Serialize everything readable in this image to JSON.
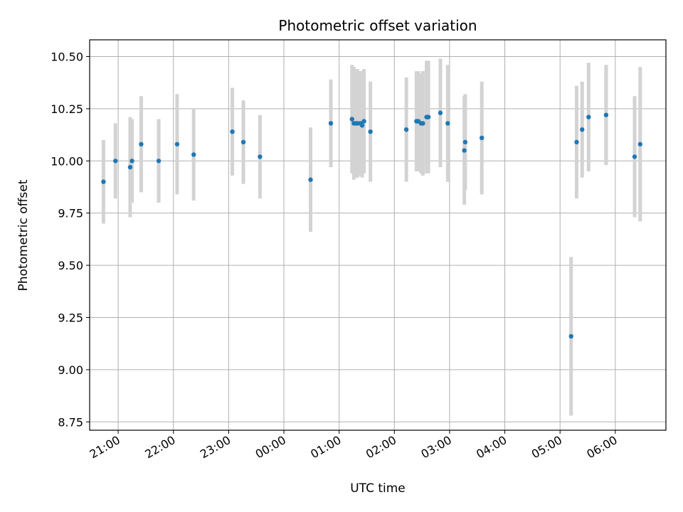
{
  "chart_data": {
    "type": "scatter",
    "title": "Photometric offset variation",
    "xlabel": "UTC time",
    "ylabel": "Photometric offset",
    "x_domain": [
      "20:29",
      "06:55"
    ],
    "x_ticks": [
      "21:00",
      "22:00",
      "23:00",
      "00:00",
      "01:00",
      "02:00",
      "03:00",
      "04:00",
      "05:00",
      "06:00"
    ],
    "ylim": [
      8.71,
      10.58
    ],
    "y_ticks": [
      "8.75",
      "9.00",
      "9.25",
      "9.50",
      "9.75",
      "10.00",
      "10.25",
      "10.50"
    ],
    "grid": true,
    "colors": {
      "point": "#1f77b4",
      "errorbar": "#d3d3d3",
      "grid": "#b0b0b0"
    },
    "points": [
      {
        "x": "20:44",
        "y": 9.9,
        "err": 0.2
      },
      {
        "x": "20:57",
        "y": 10.0,
        "err": 0.18
      },
      {
        "x": "21:13",
        "y": 9.97,
        "err": 0.24
      },
      {
        "x": "21:15",
        "y": 10.0,
        "err": 0.2
      },
      {
        "x": "21:25",
        "y": 10.08,
        "err": 0.23
      },
      {
        "x": "21:44",
        "y": 10.0,
        "err": 0.2
      },
      {
        "x": "22:04",
        "y": 10.08,
        "err": 0.24
      },
      {
        "x": "22:22",
        "y": 10.03,
        "err": 0.22
      },
      {
        "x": "23:04",
        "y": 10.14,
        "err": 0.21
      },
      {
        "x": "23:16",
        "y": 10.09,
        "err": 0.2
      },
      {
        "x": "23:34",
        "y": 10.02,
        "err": 0.2
      },
      {
        "x": "00:29",
        "y": 9.91,
        "err": 0.25
      },
      {
        "x": "00:51",
        "y": 10.18,
        "err": 0.21
      },
      {
        "x": "01:14",
        "y": 10.2,
        "err": 0.26
      },
      {
        "x": "01:16",
        "y": 10.18,
        "err": 0.27
      },
      {
        "x": "01:18",
        "y": 10.18,
        "err": 0.26
      },
      {
        "x": "01:20",
        "y": 10.18,
        "err": 0.26
      },
      {
        "x": "01:23",
        "y": 10.18,
        "err": 0.25
      },
      {
        "x": "01:25",
        "y": 10.17,
        "err": 0.25
      },
      {
        "x": "01:27",
        "y": 10.19,
        "err": 0.25
      },
      {
        "x": "01:34",
        "y": 10.14,
        "err": 0.24
      },
      {
        "x": "02:13",
        "y": 10.15,
        "err": 0.25
      },
      {
        "x": "02:24",
        "y": 10.19,
        "err": 0.24
      },
      {
        "x": "02:26",
        "y": 10.19,
        "err": 0.24
      },
      {
        "x": "02:29",
        "y": 10.18,
        "err": 0.24
      },
      {
        "x": "02:31",
        "y": 10.18,
        "err": 0.25
      },
      {
        "x": "02:35",
        "y": 10.21,
        "err": 0.27
      },
      {
        "x": "02:37",
        "y": 10.21,
        "err": 0.27
      },
      {
        "x": "02:50",
        "y": 10.23,
        "err": 0.26
      },
      {
        "x": "02:58",
        "y": 10.18,
        "err": 0.28
      },
      {
        "x": "03:16",
        "y": 10.05,
        "err": 0.26
      },
      {
        "x": "03:17",
        "y": 10.09,
        "err": 0.23
      },
      {
        "x": "03:35",
        "y": 10.11,
        "err": 0.27
      },
      {
        "x": "05:12",
        "y": 9.16,
        "err": 0.38
      },
      {
        "x": "05:18",
        "y": 10.09,
        "err": 0.27
      },
      {
        "x": "05:24",
        "y": 10.15,
        "err": 0.23
      },
      {
        "x": "05:31",
        "y": 10.21,
        "err": 0.26
      },
      {
        "x": "05:50",
        "y": 10.22,
        "err": 0.24
      },
      {
        "x": "06:21",
        "y": 10.02,
        "err": 0.29
      },
      {
        "x": "06:27",
        "y": 10.08,
        "err": 0.37
      }
    ]
  }
}
